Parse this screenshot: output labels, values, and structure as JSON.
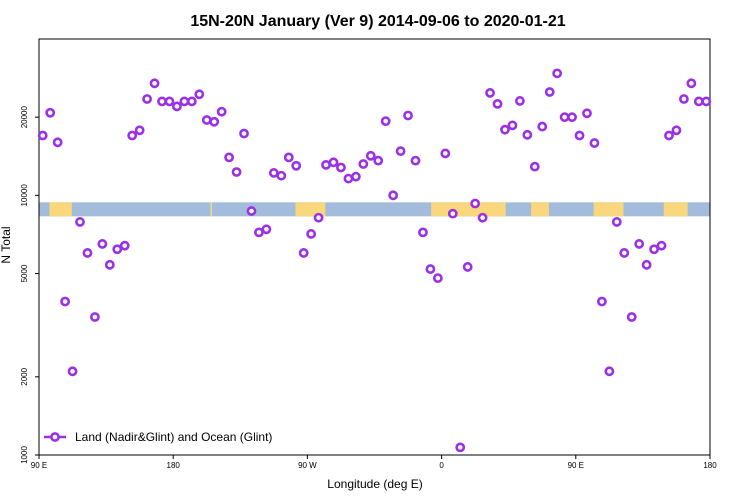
{
  "chart_data": {
    "type": "scatter",
    "title": "15N-20N January (Ver 9)   2014-09-06 to 2020-01-21",
    "xlabel": "Longitude (deg E)",
    "ylabel": "N Total",
    "y_scale": "log",
    "ylim": [
      1000,
      40000
    ],
    "y_ticks": [
      1000,
      2000,
      5000,
      10000,
      20000
    ],
    "y_tick_labels": [
      "1000",
      "2000",
      "5000",
      "10000",
      "20000"
    ],
    "x_ticks": [
      90,
      180,
      270,
      360,
      450,
      540
    ],
    "x_tick_labels": [
      "90 E",
      "180",
      "90 W",
      "0",
      "90 E",
      "180"
    ],
    "xlim": [
      90,
      540
    ],
    "grid": false,
    "legend_position": "bottom-left",
    "background_band": {
      "description": "land/ocean map strip",
      "ocean_color": "#a3bcdc",
      "land_color": "#f9d77c",
      "y_range": [
        8300,
        9400
      ],
      "land_x_ranges": [
        [
          97,
          112
        ],
        [
          205,
          206
        ],
        [
          262,
          282
        ],
        [
          353,
          403
        ],
        [
          420,
          432
        ],
        [
          462,
          482
        ],
        [
          509,
          525
        ]
      ]
    },
    "series": [
      {
        "name": "Land (Nadir&Glint) and Ocean (Glint)",
        "color": "#9b30e6",
        "marker": "circle-open",
        "x": [
          92.5,
          97.5,
          102.5,
          107.5,
          112.5,
          117.5,
          122.5,
          127.5,
          132.5,
          137.5,
          142.5,
          147.5,
          152.5,
          157.5,
          162.5,
          167.5,
          172.5,
          177.5,
          182.5,
          187.5,
          192.5,
          197.5,
          202.5,
          207.5,
          212.5,
          217.5,
          222.5,
          227.5,
          232.5,
          237.5,
          242.5,
          247.5,
          252.5,
          257.5,
          262.5,
          267.5,
          272.5,
          277.5,
          282.5,
          287.5,
          292.5,
          297.5,
          302.5,
          307.5,
          312.5,
          317.5,
          322.5,
          327.5,
          332.5,
          337.5,
          342.5,
          347.5,
          352.5,
          357.5,
          362.5,
          367.5,
          372.5,
          377.5,
          382.5,
          387.5,
          392.5,
          397.5,
          402.5,
          407.5,
          412.5,
          417.5,
          422.5,
          427.5,
          432.5,
          437.5,
          442.5,
          447.5,
          452.5,
          457.5,
          462.5,
          467.5,
          472.5,
          477.5,
          482.5,
          487.5,
          492.5,
          497.5,
          502.5,
          507.5,
          512.5,
          517.5,
          522.5,
          527.5,
          532.5,
          537.5
        ],
        "y": [
          17000,
          20800,
          16000,
          3900,
          2100,
          7900,
          6000,
          3400,
          6500,
          5400,
          6200,
          6400,
          17000,
          17800,
          23500,
          27000,
          23000,
          23000,
          22000,
          23000,
          23000,
          24500,
          19500,
          19200,
          21000,
          14000,
          12300,
          17300,
          8700,
          7200,
          7400,
          12200,
          11900,
          14000,
          13000,
          6000,
          7100,
          8200,
          13100,
          13400,
          12800,
          11600,
          11800,
          13200,
          14200,
          13600,
          19300,
          10000,
          14800,
          20300,
          13600,
          7200,
          5200,
          4800,
          14500,
          8500,
          1070,
          5300,
          9300,
          8200,
          24800,
          22500,
          17900,
          18600,
          23100,
          17100,
          12900,
          18400,
          25000,
          29500,
          20000,
          20000,
          17000,
          20700,
          15900,
          3900,
          2100,
          7900,
          6000,
          3400,
          6500,
          5400,
          6200,
          6400,
          17000,
          17800,
          23500,
          27000,
          23000,
          23000
        ]
      }
    ]
  }
}
